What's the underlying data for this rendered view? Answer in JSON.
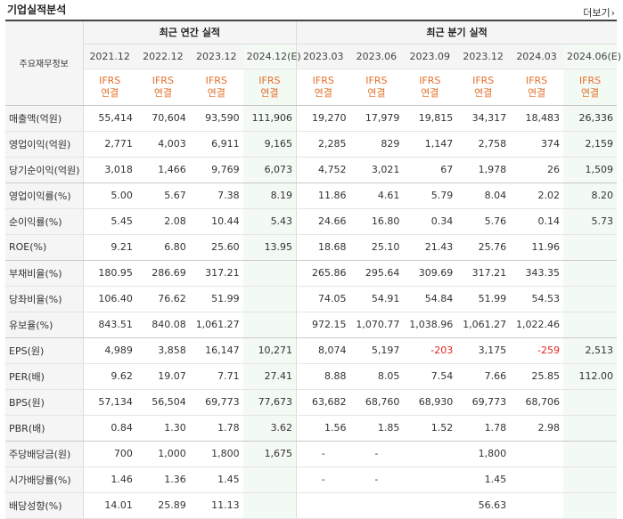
{
  "header": {
    "title": "기업실적분석",
    "more_label": "더보기",
    "more_icon": "chevron-right-icon"
  },
  "table": {
    "corner_label": "주요재무정보",
    "group_annual": "최근 연간 실적",
    "group_quarter": "최근 분기 실적",
    "periods": [
      "2021.12",
      "2022.12",
      "2023.12",
      "2024.12(E)",
      "2023.03",
      "2023.06",
      "2023.09",
      "2023.12",
      "2024.03",
      "2024.06(E)"
    ],
    "standard_top": "IFRS",
    "standard_bottom": "연결",
    "rows": [
      {
        "label": "매출액(억원)",
        "values": [
          "55,414",
          "70,604",
          "93,590",
          "111,906",
          "19,270",
          "17,979",
          "19,815",
          "34,317",
          "18,483",
          "26,336"
        ]
      },
      {
        "label": "영업이익(억원)",
        "values": [
          "2,771",
          "4,003",
          "6,911",
          "9,165",
          "2,285",
          "829",
          "1,147",
          "2,758",
          "374",
          "2,159"
        ]
      },
      {
        "label": "당기순이익(억원)",
        "values": [
          "3,018",
          "1,466",
          "9,769",
          "6,073",
          "4,752",
          "3,021",
          "67",
          "1,978",
          "26",
          "1,509"
        ]
      },
      {
        "label": "영업이익률(%)",
        "values": [
          "5.00",
          "5.67",
          "7.38",
          "8.19",
          "11.86",
          "4.61",
          "5.79",
          "8.04",
          "2.02",
          "8.20"
        ]
      },
      {
        "label": "순이익률(%)",
        "values": [
          "5.45",
          "2.08",
          "10.44",
          "5.43",
          "24.66",
          "16.80",
          "0.34",
          "5.76",
          "0.14",
          "5.73"
        ]
      },
      {
        "label": "ROE(%)",
        "values": [
          "9.21",
          "6.80",
          "25.60",
          "13.95",
          "18.68",
          "25.10",
          "21.43",
          "25.76",
          "11.96",
          ""
        ]
      },
      {
        "label": "부채비율(%)",
        "values": [
          "180.95",
          "286.69",
          "317.21",
          "",
          "265.86",
          "295.64",
          "309.69",
          "317.21",
          "343.35",
          ""
        ]
      },
      {
        "label": "당좌비율(%)",
        "values": [
          "106.40",
          "76.62",
          "51.99",
          "",
          "74.05",
          "54.91",
          "54.84",
          "51.99",
          "54.53",
          ""
        ]
      },
      {
        "label": "유보율(%)",
        "values": [
          "843.51",
          "840.08",
          "1,061.27",
          "",
          "972.15",
          "1,070.77",
          "1,038.96",
          "1,061.27",
          "1,022.46",
          ""
        ]
      },
      {
        "label": "EPS(원)",
        "values": [
          "4,989",
          "3,858",
          "16,147",
          "10,271",
          "8,074",
          "5,197",
          "-203",
          "3,175",
          "-259",
          "2,513"
        ]
      },
      {
        "label": "PER(배)",
        "values": [
          "9.62",
          "19.07",
          "7.71",
          "27.41",
          "8.88",
          "8.05",
          "7.54",
          "7.66",
          "25.85",
          "112.00"
        ]
      },
      {
        "label": "BPS(원)",
        "values": [
          "57,134",
          "56,504",
          "69,773",
          "77,673",
          "63,682",
          "68,760",
          "68,930",
          "69,773",
          "68,706",
          ""
        ]
      },
      {
        "label": "PBR(배)",
        "values": [
          "0.84",
          "1.30",
          "1.78",
          "3.62",
          "1.56",
          "1.85",
          "1.52",
          "1.78",
          "2.98",
          ""
        ]
      },
      {
        "label": "주당배당금(원)",
        "values": [
          "700",
          "1,000",
          "1,800",
          "1,675",
          "-",
          "-",
          "",
          "1,800",
          "",
          ""
        ]
      },
      {
        "label": "시가배당률(%)",
        "values": [
          "1.46",
          "1.36",
          "1.45",
          "",
          "-",
          "-",
          "",
          "1.45",
          "",
          ""
        ]
      },
      {
        "label": "배당성향(%)",
        "values": [
          "14.01",
          "25.89",
          "11.13",
          "",
          "",
          "",
          "",
          "56.63",
          "",
          ""
        ]
      }
    ]
  }
}
